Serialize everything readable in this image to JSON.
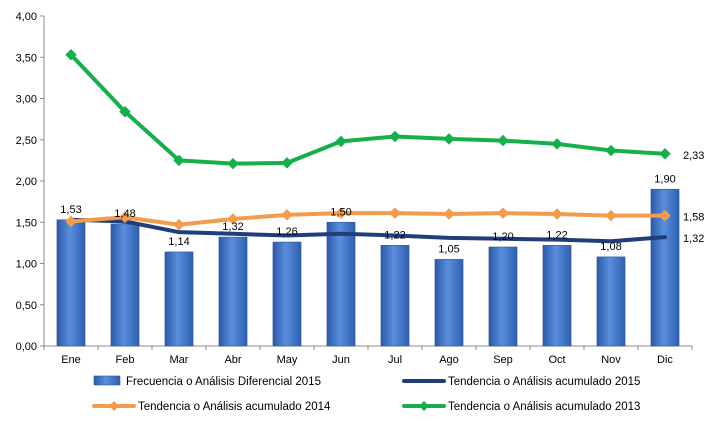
{
  "chart_data": {
    "type": "bar",
    "categories": [
      "Ene",
      "Feb",
      "Mar",
      "Abr",
      "May",
      "Jun",
      "Jul",
      "Ago",
      "Sep",
      "Oct",
      "Nov",
      "Dic"
    ],
    "ylim": [
      0,
      4
    ],
    "yticks": [
      "0,00",
      "0,50",
      "1,00",
      "1,50",
      "2,00",
      "2,50",
      "3,00",
      "3,50",
      "4,00"
    ],
    "grid": false,
    "legend_position": "bottom",
    "bar_series": {
      "name": "Frecuencia o Análisis Diferencial 2015",
      "color": "#3f72c4",
      "values": [
        1.53,
        1.48,
        1.14,
        1.32,
        1.26,
        1.5,
        1.22,
        1.05,
        1.2,
        1.22,
        1.08,
        1.9
      ],
      "labels": [
        "1,53",
        "1,48",
        "1,14",
        "1,32",
        "1,26",
        "1,50",
        "1,22",
        "1,05",
        "1,20",
        "1,22",
        "1,08",
        "1,90"
      ]
    },
    "line_series": [
      {
        "name": "Tendencia o Análisis acumulado 2015",
        "color": "#1f3f7a",
        "marker": "none",
        "values": [
          1.53,
          1.51,
          1.38,
          1.36,
          1.34,
          1.36,
          1.34,
          1.31,
          1.3,
          1.29,
          1.27,
          1.32
        ],
        "end_label": "1,32"
      },
      {
        "name": "Tendencia o Análisis acumulado 2014",
        "color": "#f39c4b",
        "marker": "diamond",
        "values": [
          1.51,
          1.56,
          1.47,
          1.54,
          1.59,
          1.61,
          1.61,
          1.6,
          1.61,
          1.6,
          1.58,
          1.58
        ],
        "end_label": "1,58"
      },
      {
        "name": "Tendencia o Análisis acumulado 2013",
        "color": "#16b04b",
        "marker": "diamond",
        "values": [
          3.53,
          2.84,
          2.25,
          2.21,
          2.22,
          2.48,
          2.54,
          2.51,
          2.49,
          2.45,
          2.37,
          2.33
        ],
        "end_label": "2,33"
      }
    ]
  }
}
